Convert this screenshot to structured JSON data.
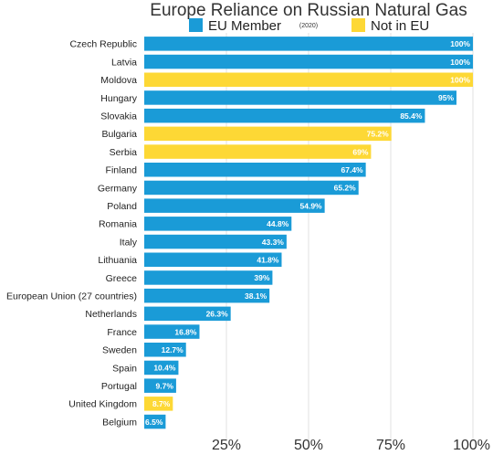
{
  "chart_data": {
    "type": "bar",
    "orientation": "horizontal",
    "title": "Europe Reliance on Russian Natural Gas",
    "subtitle": "(2020)",
    "legend": [
      {
        "name": "EU Member",
        "color": "#1a9bd7"
      },
      {
        "name": "Not in EU",
        "color": "#fdd835"
      }
    ],
    "legend_position": "top",
    "grid": true,
    "xlim": [
      0,
      100
    ],
    "ticks": [
      {
        "value": 25,
        "label": "25%"
      },
      {
        "value": 50,
        "label": "50%"
      },
      {
        "value": 75,
        "label": "75%"
      },
      {
        "value": 100,
        "label": "100%"
      }
    ],
    "bars": [
      {
        "category": "Czech Republic",
        "value": 100,
        "label": "100%",
        "group": "EU Member"
      },
      {
        "category": "Latvia",
        "value": 100,
        "label": "100%",
        "group": "EU Member"
      },
      {
        "category": "Moldova",
        "value": 100,
        "label": "100%",
        "group": "Not in EU"
      },
      {
        "category": "Hungary",
        "value": 95,
        "label": "95%",
        "group": "EU Member"
      },
      {
        "category": "Slovakia",
        "value": 85.4,
        "label": "85.4%",
        "group": "EU Member"
      },
      {
        "category": "Bulgaria",
        "value": 75.2,
        "label": "75.2%",
        "group": "Not in EU"
      },
      {
        "category": "Serbia",
        "value": 69,
        "label": "69%",
        "group": "Not in EU"
      },
      {
        "category": "Finland",
        "value": 67.4,
        "label": "67.4%",
        "group": "EU Member"
      },
      {
        "category": "Germany",
        "value": 65.2,
        "label": "65.2%",
        "group": "EU Member"
      },
      {
        "category": "Poland",
        "value": 54.9,
        "label": "54.9%",
        "group": "EU Member"
      },
      {
        "category": "Romania",
        "value": 44.8,
        "label": "44.8%",
        "group": "EU Member"
      },
      {
        "category": "Italy",
        "value": 43.3,
        "label": "43.3%",
        "group": "EU Member"
      },
      {
        "category": "Lithuania",
        "value": 41.8,
        "label": "41.8%",
        "group": "EU Member"
      },
      {
        "category": "Greece",
        "value": 39,
        "label": "39%",
        "group": "EU Member"
      },
      {
        "category": "European Union (27 countries)",
        "value": 38.1,
        "label": "38.1%",
        "group": "EU Member"
      },
      {
        "category": "Netherlands",
        "value": 26.3,
        "label": "26.3%",
        "group": "EU Member"
      },
      {
        "category": "France",
        "value": 16.8,
        "label": "16.8%",
        "group": "EU Member"
      },
      {
        "category": "Sweden",
        "value": 12.7,
        "label": "12.7%",
        "group": "EU Member"
      },
      {
        "category": "Spain",
        "value": 10.4,
        "label": "10.4%",
        "group": "EU Member"
      },
      {
        "category": "Portugal",
        "value": 9.7,
        "label": "9.7%",
        "group": "EU Member"
      },
      {
        "category": "United Kingdom",
        "value": 8.7,
        "label": "8.7%",
        "group": "Not in EU"
      },
      {
        "category": "Belgium",
        "value": 6.5,
        "label": "6.5%",
        "group": "EU Member"
      }
    ]
  }
}
